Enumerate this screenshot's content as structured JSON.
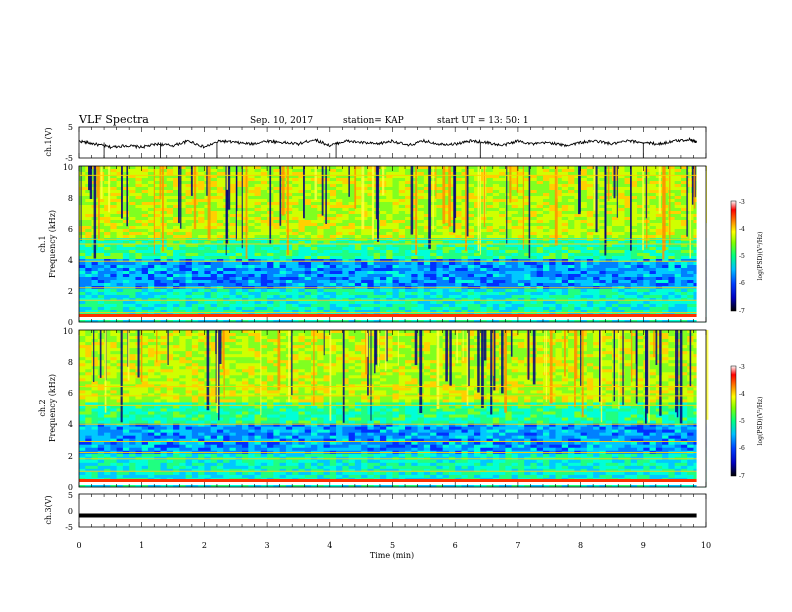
{
  "header": {
    "title": "VLF Spectra",
    "date": "Sep. 10, 2017",
    "station": "station= KAP",
    "start": "start  UT =   13: 50: 1"
  },
  "chart_data": [
    {
      "type": "line",
      "panel": "ch1-waveform",
      "ylabel": "ch.1(V)",
      "ylim": [
        -5,
        5
      ],
      "y_ticks": [
        "5",
        "-5"
      ],
      "xlim": [
        0,
        10
      ],
      "series": [
        {
          "x": [
            0,
            0.25,
            0.5,
            0.75,
            1,
            1.25,
            1.5,
            1.75,
            2,
            2.25,
            2.5,
            2.75,
            3,
            3.25,
            3.5,
            3.75,
            4,
            4.25,
            4.5,
            4.75,
            5,
            5.25,
            5.5,
            5.75,
            6,
            6.25,
            6.5,
            6.75,
            7,
            7.25,
            7.5,
            7.75,
            8,
            8.25,
            8.5,
            8.75,
            9,
            9.25,
            9.5,
            9.75,
            9.85
          ],
          "values": [
            0.5,
            -0.5,
            -1.5,
            -1.0,
            -1.5,
            -0.5,
            -1.0,
            0.5,
            -1.5,
            0.5,
            0.0,
            -0.5,
            0.5,
            0.0,
            -0.5,
            1.0,
            -1.0,
            0.5,
            0.0,
            -0.5,
            0.5,
            -1.0,
            0.5,
            -0.5,
            -0.5,
            0.5,
            0.0,
            -1.0,
            0.5,
            -0.5,
            0.0,
            -1.0,
            0.0,
            0.5,
            -0.5,
            0.5,
            0.0,
            -0.5,
            0.5,
            1.0,
            0.0
          ]
        }
      ]
    },
    {
      "type": "heatmap",
      "panel": "ch1-spectrogram",
      "ylabel_line1": "ch.1",
      "ylabel_line2": "Frequency (kHz)",
      "ylim": [
        0,
        10
      ],
      "y_ticks": [
        "0",
        "2",
        "4",
        "6",
        "8",
        "10"
      ],
      "xlim": [
        0,
        10
      ],
      "colorbar": {
        "label": "log(PSD)(V²/Hz)",
        "range": [
          -7,
          -3
        ],
        "ticks": [
          "-3",
          "-4",
          "-5",
          "-6",
          "-7"
        ]
      }
    },
    {
      "type": "heatmap",
      "panel": "ch2-spectrogram",
      "ylabel_line1": "ch.2",
      "ylabel_line2": "Frequency (kHz)",
      "ylim": [
        0,
        10
      ],
      "y_ticks": [
        "0",
        "2",
        "4",
        "6",
        "8",
        "10"
      ],
      "xlim": [
        0,
        10
      ],
      "colorbar": {
        "label": "log(PSD)(V²/Hz)",
        "range": [
          -7,
          -3
        ],
        "ticks": [
          "-3",
          "-4",
          "-5",
          "-6",
          "-7"
        ]
      }
    },
    {
      "type": "line",
      "panel": "ch3-waveform",
      "ylabel": "ch.3(V)",
      "ylim": [
        -5,
        5
      ],
      "y_ticks": [
        "5",
        "0",
        "-5"
      ],
      "xlim": [
        0,
        10
      ],
      "series": [
        {
          "x": [
            0,
            9.85
          ],
          "values": [
            -1.5,
            -1.5
          ]
        }
      ]
    }
  ],
  "x_axis": {
    "label": "Time (min)",
    "ticks": [
      "0",
      "1",
      "2",
      "3",
      "4",
      "5",
      "6",
      "7",
      "8",
      "9",
      "10"
    ]
  },
  "colors": {
    "background": "#ffffff",
    "line": "#000000",
    "colormap": [
      "#000080",
      "#0000ff",
      "#00b0ff",
      "#00ffd0",
      "#40ff40",
      "#ffff00",
      "#ff8000",
      "#ff0000",
      "#ffffff"
    ]
  }
}
